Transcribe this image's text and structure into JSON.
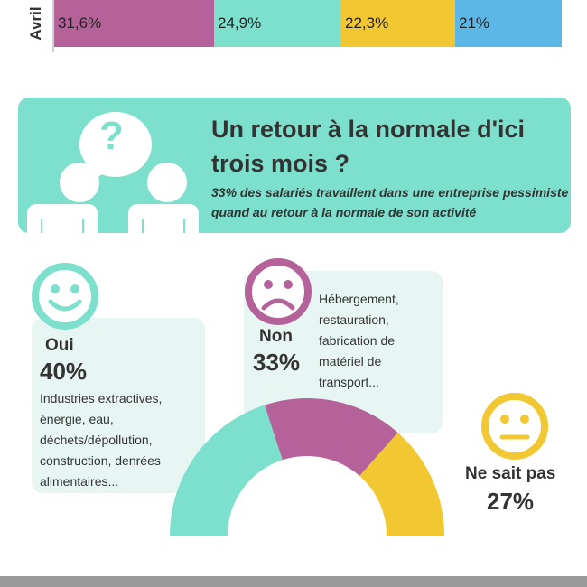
{
  "top_bar": {
    "row_label": "Avril",
    "segments": [
      {
        "label": "31,6%",
        "value": 31.6,
        "color": "#b5629a"
      },
      {
        "label": "24,9%",
        "value": 24.9,
        "color": "#7ce0cd"
      },
      {
        "label": "22,3%",
        "value": 22.3,
        "color": "#f2c832"
      },
      {
        "label": "21%",
        "value": 21,
        "color": "#5cb7e6"
      }
    ]
  },
  "banner": {
    "title": "Un retour à la normale d'ici trois mois ?",
    "subtitle": "33% des salariés travaillent dans une entreprise pessimiste quand au retour à la normale de son activité",
    "question_mark": "?"
  },
  "answers": {
    "oui": {
      "label": "Oui",
      "pct": "40%",
      "desc": "Industries extractives, énergie, eau, déchets/dépollution, construction, denrées alimentaires...",
      "icon": "smile-face-icon"
    },
    "non": {
      "label": "Non",
      "pct": "33%",
      "desc": "Hébergement, restauration, fabrication de matériel de transport...",
      "icon": "sad-face-icon"
    },
    "nsp": {
      "label": "Ne sait pas",
      "pct": "27%",
      "icon": "neutral-face-icon"
    }
  },
  "chart_data": {
    "type": "pie",
    "variant": "half-donut",
    "categories": [
      "Oui",
      "Non",
      "Ne sait pas"
    ],
    "values": [
      40,
      33,
      27
    ],
    "colors": [
      "#7ce0cd",
      "#b5629a",
      "#f2c832"
    ],
    "title": ""
  }
}
